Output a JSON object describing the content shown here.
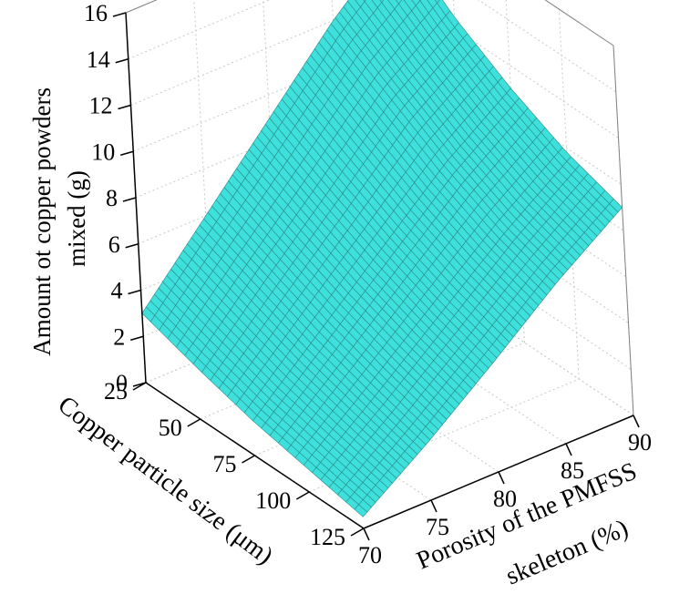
{
  "chart_data": {
    "type": "surface3d",
    "zlabel": "Amount ot copper powders mixed (g)",
    "zlabel_lines": [
      "Amount ot copper powders",
      "mixed (g)"
    ],
    "xlabel": "Copper particle size (μm)",
    "ylabel": "Porosity of the PMFSS skeleton (%)",
    "ylabel_lines": [
      "Porosity of the PMFSS",
      "skeleton (%)"
    ],
    "x_ticks": [
      "25",
      "50",
      "75",
      "100",
      "125"
    ],
    "y_ticks": [
      "70",
      "75",
      "80",
      "85",
      "90"
    ],
    "z_ticks": [
      "0",
      "2",
      "4",
      "6",
      "8",
      "10",
      "12",
      "14",
      "16"
    ],
    "xlim": [
      25,
      125
    ],
    "ylim": [
      70,
      90
    ],
    "zlim": [
      0,
      16
    ],
    "grid": true,
    "surface_color": "#3ee0dc",
    "mesh_color": "#2c8a88",
    "corners": [
      {
        "x": 25,
        "y": 70,
        "z": 3.0
      },
      {
        "x": 25,
        "y": 90,
        "z": 14.5
      },
      {
        "x": 125,
        "y": 70,
        "z": 0.5
      },
      {
        "x": 125,
        "y": 90,
        "z": 9.0
      }
    ],
    "x": [
      25,
      50,
      75,
      100,
      125
    ],
    "y": [
      70,
      75,
      80,
      85,
      90
    ],
    "z": [
      [
        3.0,
        6.0,
        9.0,
        12.0,
        14.5
      ],
      [
        2.2,
        5.0,
        7.7,
        10.5,
        12.5
      ],
      [
        1.5,
        4.0,
        6.5,
        9.0,
        11.0
      ],
      [
        1.0,
        3.2,
        5.5,
        7.8,
        9.8
      ],
      [
        0.5,
        2.5,
        4.7,
        7.0,
        9.0
      ]
    ]
  }
}
